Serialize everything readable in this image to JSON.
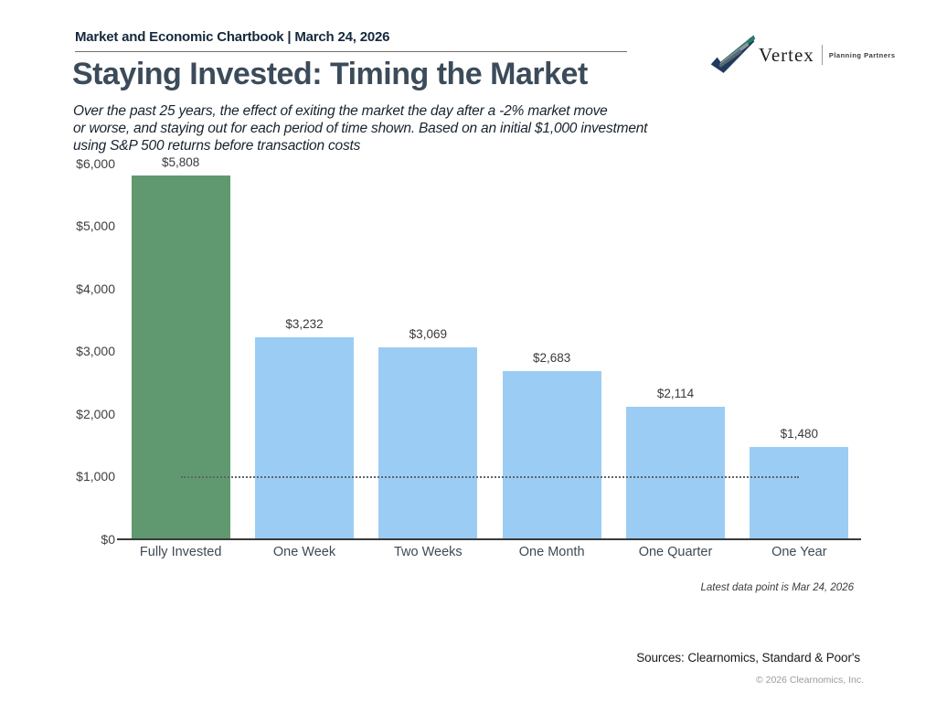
{
  "header": {
    "chartbook_title": "Market and Economic Chartbook | March 24, 2026",
    "logo": {
      "brand": "Vertex",
      "tagline": "Planning Partners"
    }
  },
  "title": "Staying Invested: Timing the Market",
  "subtitle_lines": [
    "Over the past 25 years, the effect of exiting the market the day after a -2% market move",
    "or worse, and staying out for each period of time shown. Based on an initial $1,000 investment",
    "using S&P 500 returns before transaction costs"
  ],
  "chart_data": {
    "type": "bar",
    "title": "Staying Invested: Timing the Market",
    "categories": [
      "Fully Invested",
      "One Week",
      "Two Weeks",
      "One Month",
      "One Quarter",
      "One Year"
    ],
    "values": [
      5808,
      3232,
      3069,
      2683,
      2114,
      1480
    ],
    "value_labels": [
      "$5,808",
      "$3,232",
      "$3,069",
      "$2,683",
      "$2,114",
      "$1,480"
    ],
    "bar_colors": [
      "#60996f",
      "#9bcdf4",
      "#9bcdf4",
      "#9bcdf4",
      "#9bcdf4",
      "#9bcdf4"
    ],
    "xlabel": "",
    "ylabel": "",
    "ylim": [
      0,
      6000
    ],
    "y_ticks": [
      "$6,000",
      "$5,000",
      "$4,000",
      "$3,000",
      "$2,000",
      "$1,000",
      "$0"
    ],
    "y_tick_values": [
      6000,
      5000,
      4000,
      3000,
      2000,
      1000,
      0
    ],
    "grid": false,
    "legend": false,
    "reference_line": {
      "value": 1000,
      "style": "dotted",
      "label": "initial $1,000 investment"
    }
  },
  "footnotes": {
    "latest": "Latest data point is Mar 24, 2026",
    "sources": "Sources: Clearnomics, Standard & Poor's",
    "copyright": "© 2026 Clearnomics, Inc."
  },
  "colors": {
    "accent_green": "#60996f",
    "accent_blue": "#9bcdf4",
    "title_text": "#3c4b5a",
    "header_text": "#16293c",
    "axis_line": "#3a3a3a",
    "logo_navy": "#1e3a5f",
    "logo_teal": "#2c7a6a"
  }
}
